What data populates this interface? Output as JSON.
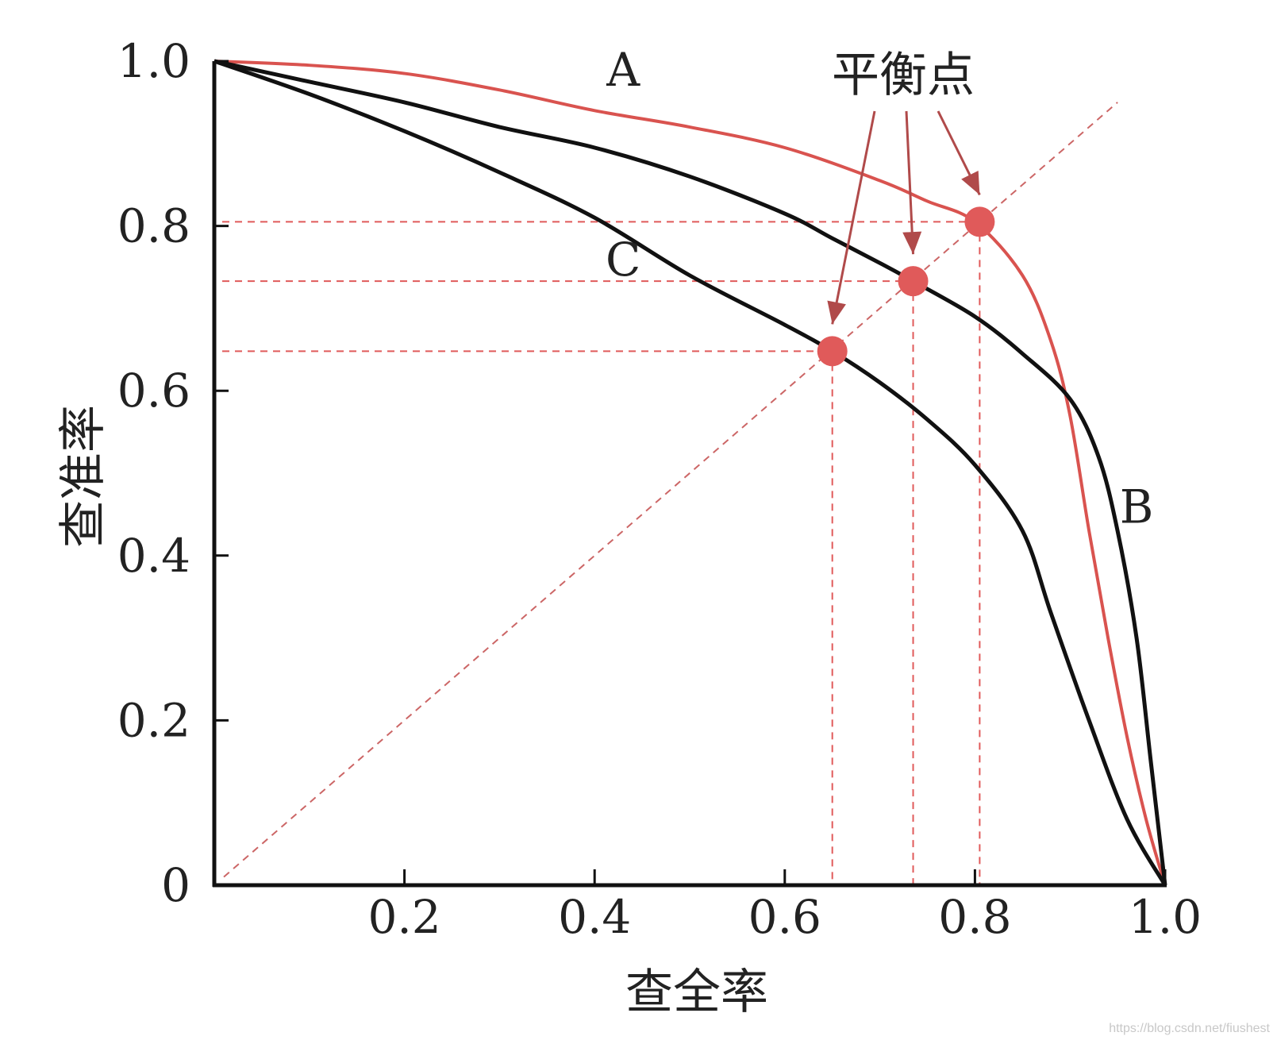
{
  "chart_data": {
    "type": "line",
    "xlabel": "查全率",
    "ylabel": "查准率",
    "xlim": [
      0,
      1
    ],
    "ylim": [
      0,
      1
    ],
    "x_ticks": [
      {
        "value": 0.2,
        "label": "0.2"
      },
      {
        "value": 0.4,
        "label": "0.4"
      },
      {
        "value": 0.6,
        "label": "0.6"
      },
      {
        "value": 0.8,
        "label": "0.8"
      },
      {
        "value": 1.0,
        "label": "1.0"
      }
    ],
    "y_ticks": [
      {
        "value": 0,
        "label": "0"
      },
      {
        "value": 0.2,
        "label": "0.2"
      },
      {
        "value": 0.4,
        "label": "0.4"
      },
      {
        "value": 0.6,
        "label": "0.6"
      },
      {
        "value": 0.8,
        "label": "0.8"
      },
      {
        "value": 1.0,
        "label": "1.0"
      }
    ],
    "series": [
      {
        "name": "A",
        "color": "#d9534f",
        "points": [
          [
            0,
            1.0
          ],
          [
            0.1,
            0.995
          ],
          [
            0.2,
            0.985
          ],
          [
            0.3,
            0.965
          ],
          [
            0.4,
            0.94
          ],
          [
            0.5,
            0.92
          ],
          [
            0.6,
            0.895
          ],
          [
            0.7,
            0.855
          ],
          [
            0.75,
            0.83
          ],
          [
            0.8,
            0.805
          ],
          [
            0.85,
            0.74
          ],
          [
            0.88,
            0.66
          ],
          [
            0.9,
            0.57
          ],
          [
            0.92,
            0.43
          ],
          [
            0.94,
            0.3
          ],
          [
            0.96,
            0.18
          ],
          [
            0.98,
            0.08
          ],
          [
            1.0,
            0.0
          ]
        ],
        "label_at": [
          0.43,
          0.97
        ]
      },
      {
        "name": "B",
        "color": "#111111",
        "points": [
          [
            0,
            1.0
          ],
          [
            0.1,
            0.975
          ],
          [
            0.2,
            0.95
          ],
          [
            0.3,
            0.92
          ],
          [
            0.4,
            0.895
          ],
          [
            0.5,
            0.86
          ],
          [
            0.6,
            0.815
          ],
          [
            0.65,
            0.785
          ],
          [
            0.7,
            0.755
          ],
          [
            0.735,
            0.733
          ],
          [
            0.8,
            0.69
          ],
          [
            0.85,
            0.645
          ],
          [
            0.9,
            0.59
          ],
          [
            0.93,
            0.52
          ],
          [
            0.95,
            0.43
          ],
          [
            0.97,
            0.3
          ],
          [
            0.985,
            0.15
          ],
          [
            1.0,
            0.0
          ]
        ],
        "label_at": [
          0.97,
          0.44
        ]
      },
      {
        "name": "C",
        "color": "#111111",
        "points": [
          [
            0,
            1.0
          ],
          [
            0.1,
            0.96
          ],
          [
            0.2,
            0.915
          ],
          [
            0.3,
            0.865
          ],
          [
            0.4,
            0.81
          ],
          [
            0.5,
            0.74
          ],
          [
            0.6,
            0.68
          ],
          [
            0.65,
            0.648
          ],
          [
            0.7,
            0.61
          ],
          [
            0.75,
            0.565
          ],
          [
            0.8,
            0.51
          ],
          [
            0.85,
            0.43
          ],
          [
            0.88,
            0.33
          ],
          [
            0.92,
            0.2
          ],
          [
            0.96,
            0.08
          ],
          [
            1.0,
            0.0
          ]
        ],
        "label_at": [
          0.43,
          0.74
        ]
      }
    ],
    "diagonal": {
      "from": [
        0.01,
        0.01
      ],
      "to": [
        0.95,
        0.95
      ],
      "color": "#cc6666"
    },
    "balance_points": [
      {
        "x": 0.65,
        "y": 0.648
      },
      {
        "x": 0.735,
        "y": 0.733
      },
      {
        "x": 0.805,
        "y": 0.805
      }
    ],
    "balance_label": "平衡点",
    "point_color": "#e05a5a",
    "grid": false
  },
  "watermark": "https://blog.csdn.net/fiushest"
}
